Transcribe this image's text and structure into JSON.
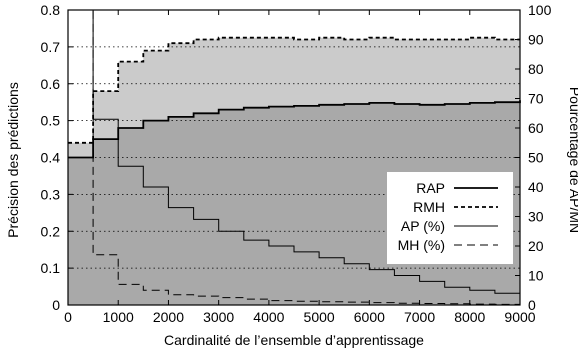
{
  "chart_data": {
    "type": "line",
    "xlabel": "Cardinalité de l’ensemble d’apprentissage",
    "ylabel_left": "Précision des prédictions",
    "ylabel_right": "Pourcentage de AP/MN",
    "xlim": [
      0,
      9000
    ],
    "ylim_left": [
      0,
      0.8
    ],
    "ylim_right": [
      0,
      100
    ],
    "x_ticks": [
      "0",
      "1000",
      "2000",
      "3000",
      "4000",
      "5000",
      "6000",
      "7000",
      "8000",
      "9000"
    ],
    "y_left_ticks": [
      "0",
      "0.1",
      "0.2",
      "0.3",
      "0.4",
      "0.5",
      "0.6",
      "0.7",
      "0.8"
    ],
    "y_right_ticks": [
      "0",
      "10",
      "20",
      "30",
      "40",
      "50",
      "60",
      "70",
      "80",
      "90",
      "100"
    ],
    "grid": "horizontal dotted",
    "legend_position": "right",
    "series": [
      {
        "name": "RAP",
        "axis": "left",
        "style": "solid-thick",
        "fill": "#a9a9a9",
        "x": [
          0,
          500,
          1000,
          1500,
          2000,
          2500,
          3000,
          3500,
          4000,
          4500,
          5000,
          5500,
          6000,
          6500,
          7000,
          7500,
          8000,
          8500,
          9000
        ],
        "y": [
          0.4,
          0.45,
          0.48,
          0.5,
          0.51,
          0.52,
          0.53,
          0.535,
          0.538,
          0.54,
          0.543,
          0.545,
          0.548,
          0.545,
          0.543,
          0.545,
          0.548,
          0.55,
          0.555
        ]
      },
      {
        "name": "RMH",
        "axis": "left",
        "style": "dashed-thick",
        "fill": "#cbcbcb",
        "x": [
          0,
          500,
          1000,
          1500,
          2000,
          2500,
          3000,
          3500,
          4000,
          4500,
          5000,
          5500,
          6000,
          6500,
          7000,
          7500,
          8000,
          8500,
          9000
        ],
        "y": [
          0.44,
          0.58,
          0.66,
          0.69,
          0.71,
          0.72,
          0.725,
          0.725,
          0.725,
          0.72,
          0.725,
          0.72,
          0.725,
          0.72,
          0.72,
          0.72,
          0.725,
          0.72,
          0.72
        ]
      },
      {
        "name": "AP (%)",
        "axis": "right",
        "style": "solid-thin",
        "x": [
          0,
          500,
          1000,
          1500,
          2000,
          2500,
          3000,
          3500,
          4000,
          4500,
          5000,
          5500,
          6000,
          6500,
          7000,
          7500,
          8000,
          8500,
          9000
        ],
        "y": [
          100,
          63,
          47,
          40,
          33,
          29,
          25,
          22,
          20,
          18,
          16,
          14,
          12,
          10,
          8,
          6,
          5,
          4,
          3.5
        ]
      },
      {
        "name": "MH (%)",
        "axis": "right",
        "style": "dashed-thin",
        "x": [
          0,
          500,
          1000,
          1500,
          2000,
          2500,
          3000,
          3500,
          4000,
          4500,
          5000,
          5500,
          6000,
          6500,
          7000,
          7500,
          8000,
          8500,
          9000
        ],
        "y": [
          100,
          17,
          7,
          5,
          3.5,
          3,
          2.5,
          2,
          1.5,
          1.3,
          1.1,
          1,
          0.8,
          0.6,
          0.5,
          0.4,
          0.3,
          0.2,
          0.2
        ]
      }
    ]
  }
}
